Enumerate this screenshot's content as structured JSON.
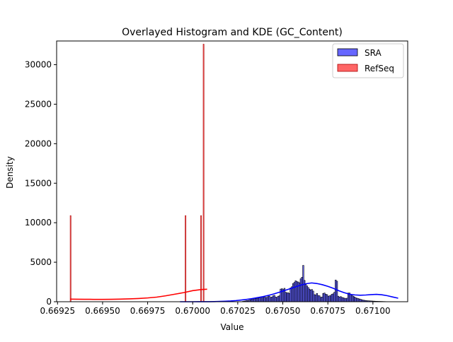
{
  "chart_data": {
    "type": "bar",
    "title": "Overlayed Histogram and KDE (GC_Content)",
    "xlabel": "Value",
    "ylabel": "Density",
    "xlim": [
      0.669245,
      0.671193
    ],
    "ylim": [
      0,
      33000
    ],
    "x_ticks": [
      {
        "value": 0.66925,
        "label": "0.66925"
      },
      {
        "value": 0.6695,
        "label": "0.66950"
      },
      {
        "value": 0.66975,
        "label": "0.66975"
      },
      {
        "value": 0.67,
        "label": "0.67000"
      },
      {
        "value": 0.67025,
        "label": "0.67025"
      },
      {
        "value": 0.6705,
        "label": "0.67050"
      },
      {
        "value": 0.67075,
        "label": "0.67075"
      },
      {
        "value": 0.671,
        "label": "0.67100"
      }
    ],
    "y_ticks": [
      {
        "value": 0,
        "label": "0"
      },
      {
        "value": 5000,
        "label": "5000"
      },
      {
        "value": 10000,
        "label": "10000"
      },
      {
        "value": 15000,
        "label": "15000"
      },
      {
        "value": 20000,
        "label": "20000"
      },
      {
        "value": 25000,
        "label": "25000"
      },
      {
        "value": 30000,
        "label": "30000"
      }
    ],
    "legend": {
      "position": "top-right"
    },
    "series": [
      {
        "name": "SRA",
        "color": "#0000ff",
        "bin_width": 6.9e-06,
        "bins_start": [
          0.670276,
          0.670283,
          0.67029,
          0.670297,
          0.670304,
          0.670311,
          0.670318,
          0.670325,
          0.670332,
          0.670339,
          0.670346,
          0.670353,
          0.67036,
          0.670367,
          0.670374,
          0.670381,
          0.670388,
          0.670394,
          0.670401,
          0.670408,
          0.670415,
          0.670422,
          0.670429,
          0.670436,
          0.670443,
          0.67045,
          0.670457,
          0.670464,
          0.670471,
          0.670478,
          0.670485,
          0.670492,
          0.670499,
          0.670506,
          0.670513,
          0.670519,
          0.670526,
          0.670533,
          0.67054,
          0.670547,
          0.670554,
          0.670561,
          0.670568,
          0.670575,
          0.670582,
          0.670589,
          0.670596,
          0.670603,
          0.67061,
          0.670617,
          0.670624,
          0.670631,
          0.670638,
          0.670644,
          0.670651,
          0.670658,
          0.670665,
          0.670672,
          0.670679,
          0.670686,
          0.670693,
          0.6707,
          0.670707,
          0.670714,
          0.670721,
          0.670728,
          0.670735,
          0.670742,
          0.670749,
          0.670756,
          0.670763,
          0.670769,
          0.670776,
          0.670783,
          0.67079,
          0.670797,
          0.670804,
          0.670811,
          0.670818,
          0.670825,
          0.670832,
          0.670839,
          0.670846,
          0.670853,
          0.67086,
          0.670867,
          0.670874,
          0.670881,
          0.670888,
          0.670894,
          0.670901,
          0.670908,
          0.670915,
          0.670922,
          0.670929,
          0.670936,
          0.670943,
          0.67095,
          0.670957,
          0.670964,
          0.670971,
          0.670978,
          0.670985,
          0.670992,
          0.670999,
          0.671006,
          0.671013,
          0.671019,
          0.671026,
          0.671033,
          0.67104,
          0.671047,
          0.671054,
          0.671061,
          0.671068,
          0.671075,
          0.671082,
          0.671089,
          0.671096,
          0.671103,
          0.67111,
          0.671117,
          0.671124,
          0.671131,
          0.671138,
          0.671144
        ],
        "values": [
          50,
          80,
          100,
          150,
          150,
          200,
          250,
          300,
          300,
          350,
          380,
          400,
          450,
          500,
          550,
          600,
          650,
          600,
          550,
          550,
          650,
          700,
          550,
          600,
          750,
          800,
          600,
          550,
          700,
          750,
          1600,
          1650,
          1550,
          1700,
          1200,
          1100,
          1150,
          1050,
          1750,
          1900,
          2300,
          2450,
          2650,
          2550,
          2500,
          2400,
          2900,
          3100,
          4600,
          2700,
          2200,
          2000,
          1800,
          1600,
          1500,
          1550,
          1350,
          900,
          850,
          1050,
          800,
          750,
          550,
          600,
          1050,
          1100,
          950,
          900,
          700,
          750,
          800,
          950,
          1000,
          1200,
          2750,
          2600,
          700,
          600,
          650,
          550,
          500,
          450,
          400,
          450,
          1100,
          1100,
          950,
          800,
          700,
          600,
          500,
          450,
          400,
          350,
          300,
          250,
          200,
          180,
          150,
          130,
          120,
          110,
          100,
          90,
          80,
          70,
          60,
          55,
          50,
          45,
          40,
          35,
          30,
          25,
          20,
          18,
          16,
          14,
          12,
          10,
          8,
          6,
          4,
          2,
          1,
          1
        ],
        "kde": {
          "x": [
            0.66993,
            0.66996,
            0.67,
            0.67003,
            0.67006,
            0.67009,
            0.67012,
            0.67015,
            0.67018,
            0.67021,
            0.67024,
            0.67027,
            0.6703,
            0.67033,
            0.67036,
            0.67039,
            0.67042,
            0.67045,
            0.67048,
            0.67051,
            0.67054,
            0.67057,
            0.6706,
            0.67063,
            0.67066,
            0.67069,
            0.67072,
            0.67075,
            0.67078,
            0.67081,
            0.67084,
            0.67087,
            0.6709,
            0.67093,
            0.67096,
            0.67099,
            0.67102,
            0.67105,
            0.67108,
            0.67111,
            0.67114
          ],
          "y": [
            0,
            0,
            0,
            2,
            5,
            10,
            20,
            35,
            60,
            95,
            145,
            215,
            300,
            400,
            520,
            650,
            800,
            980,
            1200,
            1420,
            1640,
            1880,
            2100,
            2280,
            2380,
            2300,
            2150,
            1950,
            1700,
            1400,
            1150,
            950,
            860,
            820,
            850,
            900,
            930,
            880,
            760,
            600,
            450
          ]
        }
      },
      {
        "name": "RefSeq",
        "color": "#ff0000",
        "bin_width": 4.8e-06,
        "bins_start": [
          0.66932,
          0.669958,
          0.670044,
          0.670058
        ],
        "values": [
          10900,
          10900,
          10900,
          32600
        ],
        "kde": {
          "x": [
            0.66932,
            0.66935,
            0.6694,
            0.66945,
            0.6695,
            0.66955,
            0.6696,
            0.66965,
            0.6697,
            0.66975,
            0.6698,
            0.66985,
            0.6699,
            0.66995,
            0.67,
            0.67005,
            0.67008
          ],
          "y": [
            330,
            320,
            310,
            300,
            300,
            310,
            330,
            360,
            410,
            480,
            580,
            750,
            950,
            1150,
            1400,
            1550,
            1580
          ]
        }
      }
    ]
  }
}
